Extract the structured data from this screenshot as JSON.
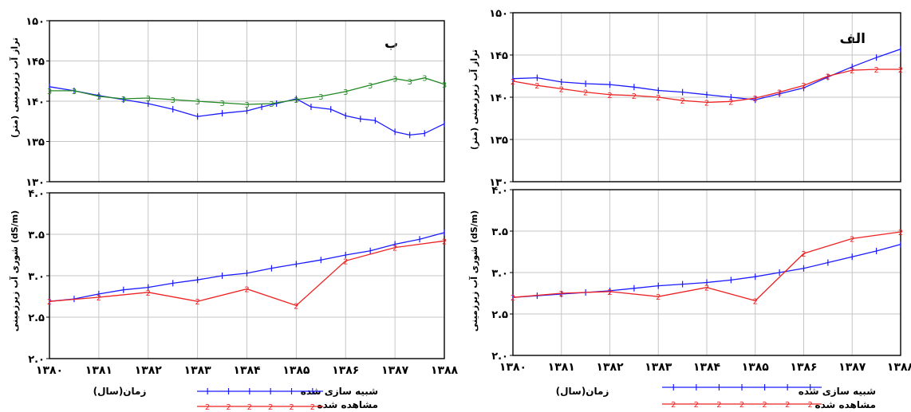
{
  "colors": {
    "simulated": "#1a1aff",
    "observed": "#ee2222",
    "green": "#228822",
    "grid": "#c6c6c6",
    "frame": "#000000"
  },
  "level_ticks": [
    "۱۳۰",
    "۱۳۵",
    "۱۴۰",
    "۱۴۵",
    "۱۵۰"
  ],
  "salinity_ticks": [
    "۲.۰",
    "۲.۵",
    "۳.۰",
    "۳.۵",
    "۴.۰"
  ],
  "year_ticks": [
    "۱۳۸۰",
    "۱۳۸۱",
    "۱۳۸۲",
    "۱۳۸۳",
    "۱۳۸۴",
    "۱۳۸۵",
    "۱۳۸۶",
    "۱۳۸۷",
    "۱۳۸۸"
  ],
  "left": {
    "panel_label": "ب",
    "level_ylabel": "تراز آب زیرزمینی (متر)",
    "salinity_ylabel": "شوری آب زیرزمینی (dS/m)",
    "x_ticks": [
      "۱۳۸۰",
      "۱۳۸۱",
      "۱۳۸۲",
      "۱۳۸۳",
      "۱۳۸۴",
      "۱۳۸۵",
      "۱۳۸۶",
      "۱۳۸۷",
      "۱۳۸۸"
    ],
    "legend": {
      "xlabel": "زمان(سال)",
      "simulated": "شبیه سازی شده",
      "observed": "مشاهده شده"
    }
  },
  "right": {
    "panel_label": "الف",
    "level_ylabel": "تراز آب زیرزمینی (متر)",
    "salinity_ylabel": "شوری آب زیرزمینی (dS/m)",
    "x_ticks": [
      "۱۳۸۰",
      "۱۳۸۱",
      "۱۳۸۲",
      "۱۳۸۳",
      "۱۳۸۴",
      "۱۳۸۵",
      "۱۳۸۶",
      "۱۳۸۷",
      "۱۳۸۸"
    ],
    "legend": {
      "xlabel": "زمان(سال)",
      "simulated": "شبیه سازی شده",
      "observed": "مشاهده شده"
    }
  },
  "chart_data": [
    {
      "panel": "ب",
      "type": "line",
      "ylim": [
        130,
        150
      ],
      "xlim": [
        1380,
        1388
      ],
      "ylabel": "تراز آب زیرزمینی (متر)",
      "series": [
        {
          "color": "blue",
          "marker": "1",
          "x": [
            1380,
            1380.5,
            1381,
            1381.5,
            1382,
            1382.5,
            1383,
            1383.5,
            1384,
            1384.3,
            1384.6,
            1385,
            1385.3,
            1385.7,
            1386,
            1386.3,
            1386.6,
            1387,
            1387.3,
            1387.6,
            1388
          ],
          "y": [
            141.8,
            141.3,
            140.7,
            140.2,
            139.7,
            139.0,
            138.1,
            138.5,
            138.8,
            139.3,
            139.7,
            140.3,
            139.3,
            139.0,
            138.2,
            137.8,
            137.6,
            136.2,
            135.8,
            136.0,
            137.2
          ]
        },
        {
          "color": "green",
          "marker": "3",
          "x": [
            1380,
            1380.5,
            1381,
            1381.5,
            1382,
            1382.5,
            1383,
            1383.5,
            1384,
            1384.5,
            1385,
            1385.5,
            1386,
            1386.5,
            1387,
            1387.3,
            1387.6,
            1388
          ],
          "y": [
            141.3,
            141.3,
            140.6,
            140.3,
            140.4,
            140.2,
            140.0,
            139.8,
            139.6,
            139.7,
            140.2,
            140.6,
            141.2,
            142.0,
            142.8,
            142.5,
            142.9,
            142.1
          ]
        }
      ]
    },
    {
      "panel": "ب",
      "type": "line",
      "ylim": [
        2.0,
        4.0
      ],
      "xlim": [
        1380,
        1388
      ],
      "ylabel": "شوری آب زیرزمینی (dS/m)",
      "series": [
        {
          "name": "شبیه سازی شده",
          "color": "blue",
          "marker": "1",
          "x": [
            1380,
            1380.5,
            1381,
            1381.5,
            1382,
            1382.5,
            1383,
            1383.5,
            1384,
            1384.5,
            1385,
            1385.5,
            1386,
            1386.5,
            1387,
            1387.5,
            1388
          ],
          "y": [
            2.69,
            2.72,
            2.78,
            2.83,
            2.86,
            2.91,
            2.95,
            3.0,
            3.03,
            3.09,
            3.14,
            3.19,
            3.25,
            3.3,
            3.38,
            3.44,
            3.52
          ]
        },
        {
          "name": "مشاهده شده",
          "color": "red",
          "marker": "2",
          "x": [
            1380,
            1381,
            1382,
            1383,
            1384,
            1385,
            1386,
            1387,
            1388
          ],
          "y": [
            2.69,
            2.74,
            2.8,
            2.69,
            2.84,
            2.64,
            3.18,
            3.34,
            3.42
          ]
        }
      ]
    },
    {
      "panel": "الف",
      "type": "line",
      "ylim": [
        130,
        150
      ],
      "xlim": [
        1380,
        1388
      ],
      "ylabel": "تراز آب زیرزمینی (متر)",
      "series": [
        {
          "name": "شبیه سازی شده",
          "color": "blue",
          "marker": "1",
          "x": [
            1380,
            1380.5,
            1381,
            1381.5,
            1382,
            1382.5,
            1383,
            1383.5,
            1384,
            1384.5,
            1385,
            1385.5,
            1386,
            1386.5,
            1387,
            1387.5,
            1388
          ],
          "y": [
            142.2,
            142.3,
            141.8,
            141.6,
            141.5,
            141.2,
            140.8,
            140.6,
            140.3,
            140.0,
            139.7,
            140.4,
            141.1,
            142.4,
            143.6,
            144.7,
            145.7
          ]
        },
        {
          "name": "مشاهده شده",
          "color": "red",
          "marker": "2",
          "x": [
            1380,
            1380.5,
            1381,
            1381.5,
            1382,
            1382.5,
            1383,
            1383.5,
            1384,
            1384.5,
            1385,
            1385.5,
            1386,
            1386.5,
            1387,
            1387.5,
            1388
          ],
          "y": [
            141.9,
            141.4,
            141.0,
            140.6,
            140.3,
            140.2,
            140.0,
            139.6,
            139.4,
            139.5,
            139.9,
            140.6,
            141.4,
            142.5,
            143.2,
            143.3,
            143.3
          ]
        }
      ]
    },
    {
      "panel": "الف",
      "type": "line",
      "ylim": [
        2.0,
        4.0
      ],
      "xlim": [
        1380,
        1388
      ],
      "ylabel": "شوری آب زیرزمینی (dS/m)",
      "series": [
        {
          "name": "شبیه سازی شده",
          "color": "blue",
          "marker": "1",
          "x": [
            1380,
            1380.5,
            1381,
            1381.5,
            1382,
            1382.5,
            1383,
            1383.5,
            1384,
            1384.5,
            1385,
            1385.5,
            1386,
            1386.5,
            1387,
            1387.5,
            1388
          ],
          "y": [
            2.7,
            2.72,
            2.74,
            2.76,
            2.78,
            2.81,
            2.84,
            2.86,
            2.88,
            2.91,
            2.95,
            3.0,
            3.05,
            3.12,
            3.19,
            3.26,
            3.34
          ]
        },
        {
          "name": "مشاهده شده",
          "color": "red",
          "marker": "2",
          "x": [
            1380,
            1381,
            1382,
            1383,
            1384,
            1385,
            1386,
            1387,
            1388
          ],
          "y": [
            2.7,
            2.75,
            2.77,
            2.71,
            2.82,
            2.66,
            3.23,
            3.41,
            3.49
          ]
        }
      ]
    }
  ]
}
